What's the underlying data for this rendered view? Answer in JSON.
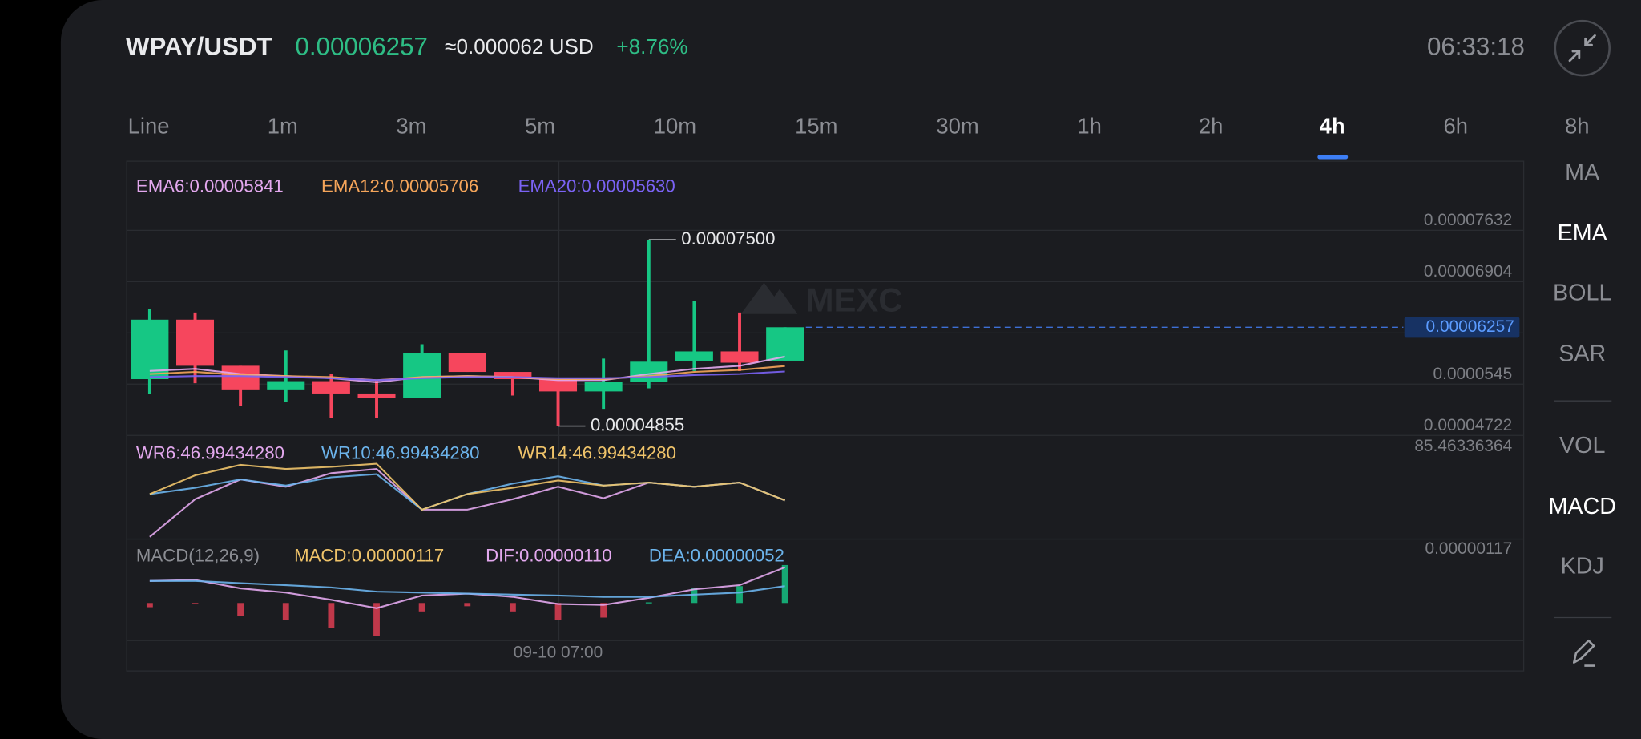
{
  "header": {
    "pair": "WPAY/USDT",
    "price": "0.00006257",
    "usd": "≈0.000062 USD",
    "change": "+8.76%",
    "time": "06:33:18"
  },
  "intervals": [
    {
      "label": "Line"
    },
    {
      "label": "1m"
    },
    {
      "label": "3m"
    },
    {
      "label": "5m"
    },
    {
      "label": "10m"
    },
    {
      "label": "15m"
    },
    {
      "label": "30m"
    },
    {
      "label": "1h"
    },
    {
      "label": "2h"
    },
    {
      "label": "4h",
      "active": true
    },
    {
      "label": "6h"
    },
    {
      "label": "8h"
    }
  ],
  "indicators": [
    {
      "label": "MA"
    },
    {
      "label": "EMA",
      "active": true
    },
    {
      "label": "BOLL"
    },
    {
      "label": "SAR"
    },
    {
      "label": "VOL"
    },
    {
      "label": "MACD",
      "active": true
    },
    {
      "label": "KDJ"
    }
  ],
  "watermark": "MEXC",
  "chart_data": [
    {
      "type": "candlestick",
      "categories": [
        null,
        null,
        null,
        null,
        null,
        null,
        null,
        null,
        null,
        "09-10 07:00",
        null,
        null,
        null,
        null,
        null
      ],
      "open": [
        5.521e-05,
        6.365e-05,
        5.71e-05,
        5.375e-05,
        5.492e-05,
        5.317e-05,
        5.259e-05,
        5.885e-05,
        5.623e-05,
        5.521e-05,
        5.346e-05,
        5.477e-05,
        5.783e-05,
        5.914e-05,
        5.783e-05
      ],
      "high": [
        6.511e-05,
        6.467e-05,
        5.71e-05,
        5.928e-05,
        5.594e-05,
        5.506e-05,
        6.016e-05,
        5.885e-05,
        5.623e-05,
        5.521e-05,
        5.812e-05,
        7.5e-05,
        6.627e-05,
        6.467e-05,
        6.257e-05
      ],
      "low": [
        5.317e-05,
        5.463e-05,
        5.142e-05,
        5.2e-05,
        4.968e-05,
        4.968e-05,
        5.259e-05,
        5.623e-05,
        5.288e-05,
        4.855e-05,
        5.099e-05,
        5.39e-05,
        5.637e-05,
        5.637e-05,
        5.783e-05
      ],
      "close": [
        6.365e-05,
        5.71e-05,
        5.375e-05,
        5.492e-05,
        5.317e-05,
        5.259e-05,
        5.885e-05,
        5.623e-05,
        5.521e-05,
        5.346e-05,
        5.477e-05,
        5.768e-05,
        5.914e-05,
        5.754e-05,
        6.257e-05
      ],
      "up_color": "#16c784",
      "down_color": "#f6465d",
      "ylim": [
        4.722e-05,
        8.613e-05
      ],
      "yticks": [
        7.632e-05,
        6.904e-05,
        5.45e-05,
        4.722e-05
      ],
      "grid": true,
      "current_price": 6.257e-05,
      "high_label": {
        "value": 7.5e-05,
        "label": "0.00007500"
      },
      "low_label": {
        "value": 4.855e-05,
        "label": "0.00004855"
      },
      "series": [
        {
          "name": "EMA6",
          "label": "EMA6:0.00005841",
          "color": "#e3a8ee",
          "values": [
            5.637e-05,
            5.666e-05,
            5.594e-05,
            5.564e-05,
            5.535e-05,
            5.477e-05,
            5.55e-05,
            5.564e-05,
            5.55e-05,
            5.506e-05,
            5.506e-05,
            5.594e-05,
            5.666e-05,
            5.71e-05,
            5.841e-05
          ]
        },
        {
          "name": "EMA12",
          "label": "EMA12:0.00005706",
          "color": "#f5a55a",
          "values": [
            5.594e-05,
            5.623e-05,
            5.579e-05,
            5.564e-05,
            5.55e-05,
            5.506e-05,
            5.55e-05,
            5.564e-05,
            5.55e-05,
            5.521e-05,
            5.521e-05,
            5.564e-05,
            5.623e-05,
            5.652e-05,
            5.706e-05
          ]
        },
        {
          "name": "EMA20",
          "label": "EMA20:0.00005630",
          "color": "#7b63f5",
          "values": [
            5.55e-05,
            5.564e-05,
            5.564e-05,
            5.55e-05,
            5.535e-05,
            5.506e-05,
            5.535e-05,
            5.55e-05,
            5.55e-05,
            5.535e-05,
            5.535e-05,
            5.55e-05,
            5.579e-05,
            5.594e-05,
            5.63e-05
          ]
        }
      ]
    },
    {
      "type": "line",
      "ylim": [
        18.5,
        94.7
      ],
      "max_label": 85.46336364,
      "series": [
        {
          "name": "WR6",
          "label": "WR6:46.99434280",
          "color": "#e3a8ee",
          "values": [
            20.1,
            47.8,
            62.4,
            57.0,
            67.0,
            70.1,
            40.1,
            40.1,
            47.8,
            57.0,
            48.5,
            60.1,
            57.0,
            60.1,
            46.9943428
          ]
        },
        {
          "name": "WR10",
          "label": "WR10:46.99434280",
          "color": "#6cb4ec",
          "values": [
            51.6,
            56.2,
            62.4,
            57.8,
            63.9,
            66.2,
            40.1,
            51.6,
            59.3,
            64.7,
            57.8,
            60.1,
            57.0,
            60.1,
            46.9943428
          ]
        },
        {
          "name": "WR14",
          "label": "WR14:46.99434280",
          "color": "#f0c46a",
          "values": [
            51.6,
            65.4,
            73.1,
            70.1,
            71.6,
            73.9,
            40.1,
            51.6,
            56.2,
            61.6,
            57.8,
            60.1,
            57.0,
            60.1,
            46.9943428
          ]
        }
      ]
    },
    {
      "type": "macd",
      "title": "MACD(12,26,9)",
      "ylim": [
        -1.16e-06,
        1.97e-06
      ],
      "max_label": 1.17e-06,
      "histogram": {
        "name": "MACD",
        "label": "MACD:0.00000117",
        "color": "#f0c46a",
        "up_color": "#16a874",
        "down_color": "#c0384a",
        "values": [
          -1.3e-07,
          -3e-08,
          -3.9e-07,
          -5.2e-07,
          -7.7e-07,
          -1.03e-06,
          -2.6e-07,
          -1e-07,
          -2.6e-07,
          -5.2e-07,
          -4.5e-07,
          2e-08,
          4.5e-07,
          5.2e-07,
          1.17e-06
        ]
      },
      "series": [
        {
          "name": "DIF",
          "label": "DIF:0.00000110",
          "color": "#e3a8ee",
          "values": [
            6.8e-07,
            7.1e-07,
            4.5e-07,
            3.2e-07,
            1e-07,
            -1.6e-07,
            2.3e-07,
            2.9e-07,
            1.9e-07,
            -3e-08,
            -6e-08,
            1.6e-07,
            4.2e-07,
            5.5e-07,
            1.1e-06
          ]
        },
        {
          "name": "DEA",
          "label": "DEA:0.00000052",
          "color": "#6cb4ec",
          "values": [
            6.8e-07,
            6.8e-07,
            6.1e-07,
            5.5e-07,
            4.8e-07,
            3.5e-07,
            3.2e-07,
            2.9e-07,
            2.6e-07,
            2.3e-07,
            1.9e-07,
            1.9e-07,
            2.6e-07,
            3.2e-07,
            5.2e-07
          ]
        }
      ]
    }
  ]
}
